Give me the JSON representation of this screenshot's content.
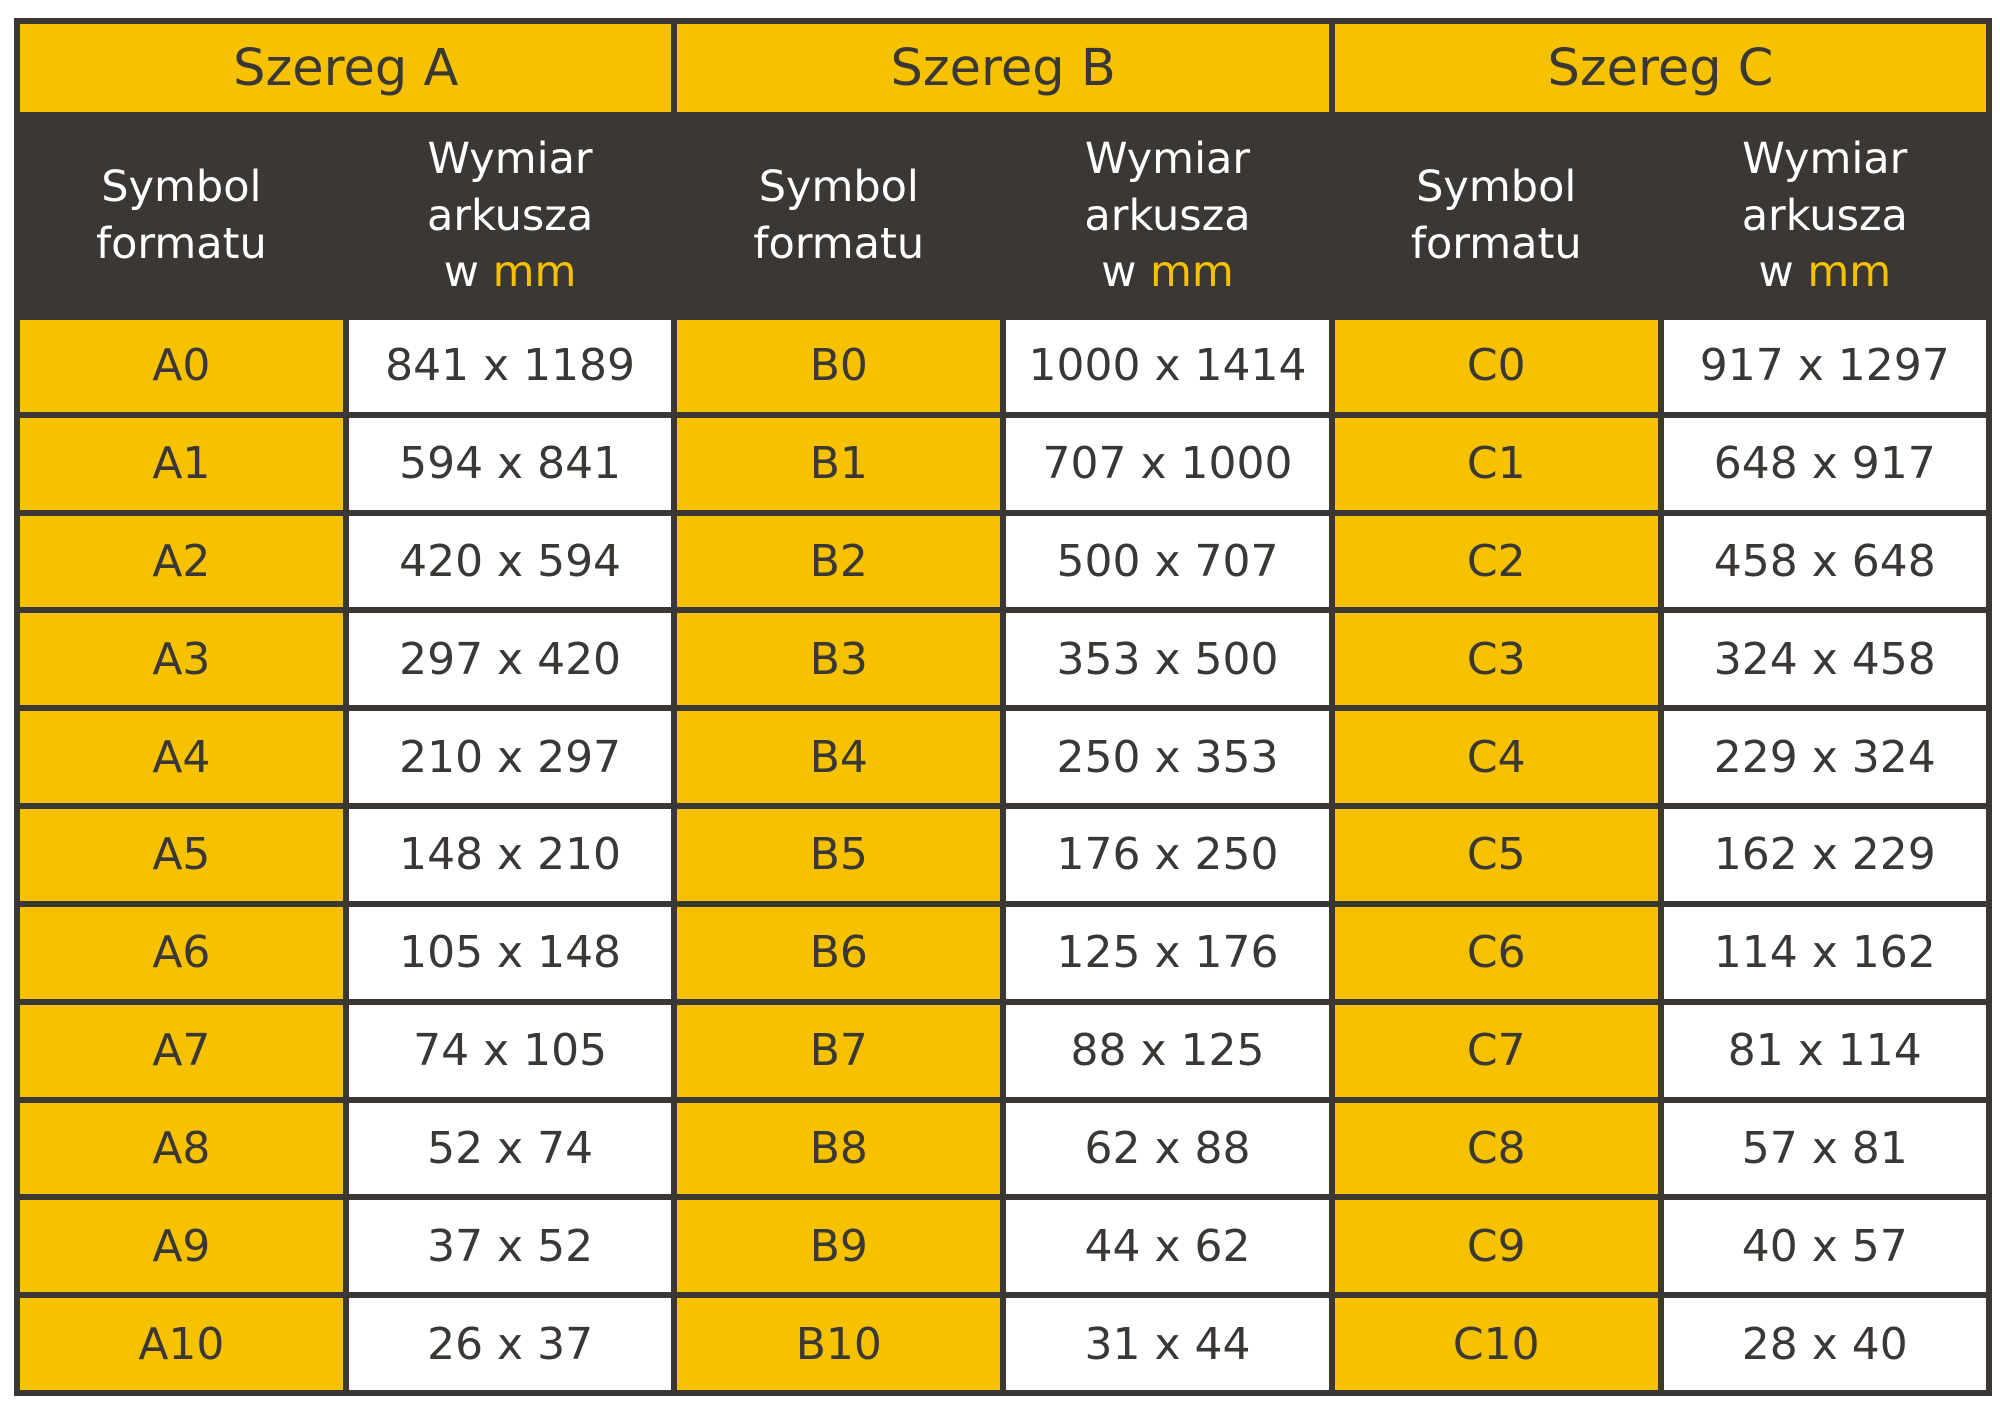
{
  "series": [
    {
      "title": "Szereg A",
      "rows": [
        {
          "symbol": "A0",
          "dim": "841 x 1189"
        },
        {
          "symbol": "A1",
          "dim": "594 x 841"
        },
        {
          "symbol": "A2",
          "dim": "420 x 594"
        },
        {
          "symbol": "A3",
          "dim": "297 x 420"
        },
        {
          "symbol": "A4",
          "dim": "210 x 297"
        },
        {
          "symbol": "A5",
          "dim": "148 x 210"
        },
        {
          "symbol": "A6",
          "dim": "105 x 148"
        },
        {
          "symbol": "A7",
          "dim": "74 x 105"
        },
        {
          "symbol": "A8",
          "dim": "52 x 74"
        },
        {
          "symbol": "A9",
          "dim": "37 x 52"
        },
        {
          "symbol": "A10",
          "dim": "26 x 37"
        }
      ]
    },
    {
      "title": "Szereg B",
      "rows": [
        {
          "symbol": "B0",
          "dim": "1000 x 1414"
        },
        {
          "symbol": "B1",
          "dim": "707 x 1000"
        },
        {
          "symbol": "B2",
          "dim": "500 x 707"
        },
        {
          "symbol": "B3",
          "dim": "353 x 500"
        },
        {
          "symbol": "B4",
          "dim": "250 x 353"
        },
        {
          "symbol": "B5",
          "dim": "176 x 250"
        },
        {
          "symbol": "B6",
          "dim": "125 x 176"
        },
        {
          "symbol": "B7",
          "dim": "88 x 125"
        },
        {
          "symbol": "B8",
          "dim": "62 x 88"
        },
        {
          "symbol": "B9",
          "dim": "44 x 62"
        },
        {
          "symbol": "B10",
          "dim": "31 x 44"
        }
      ]
    },
    {
      "title": "Szereg C",
      "rows": [
        {
          "symbol": "C0",
          "dim": "917 x 1297"
        },
        {
          "symbol": "C1",
          "dim": "648 x 917"
        },
        {
          "symbol": "C2",
          "dim": "458 x 648"
        },
        {
          "symbol": "C3",
          "dim": "324 x 458"
        },
        {
          "symbol": "C4",
          "dim": "229 x 324"
        },
        {
          "symbol": "C5",
          "dim": "162 x 229"
        },
        {
          "symbol": "C6",
          "dim": "114 x 162"
        },
        {
          "symbol": "C7",
          "dim": "81 x 114"
        },
        {
          "symbol": "C8",
          "dim": "57 x 81"
        },
        {
          "symbol": "C9",
          "dim": "40 x 57"
        },
        {
          "symbol": "C10",
          "dim": "28 x 40"
        }
      ]
    }
  ],
  "headers": {
    "symbol_line1": "Symbol",
    "symbol_line2": "formatu",
    "dim_line1": "Wymiar",
    "dim_line2": "arkusza",
    "dim_line3_prefix": "w",
    "dim_line3_unit": "mm"
  },
  "colors": {
    "accent_yellow": "#f6c200",
    "dark": "#3a3735",
    "white": "#ffffff"
  }
}
